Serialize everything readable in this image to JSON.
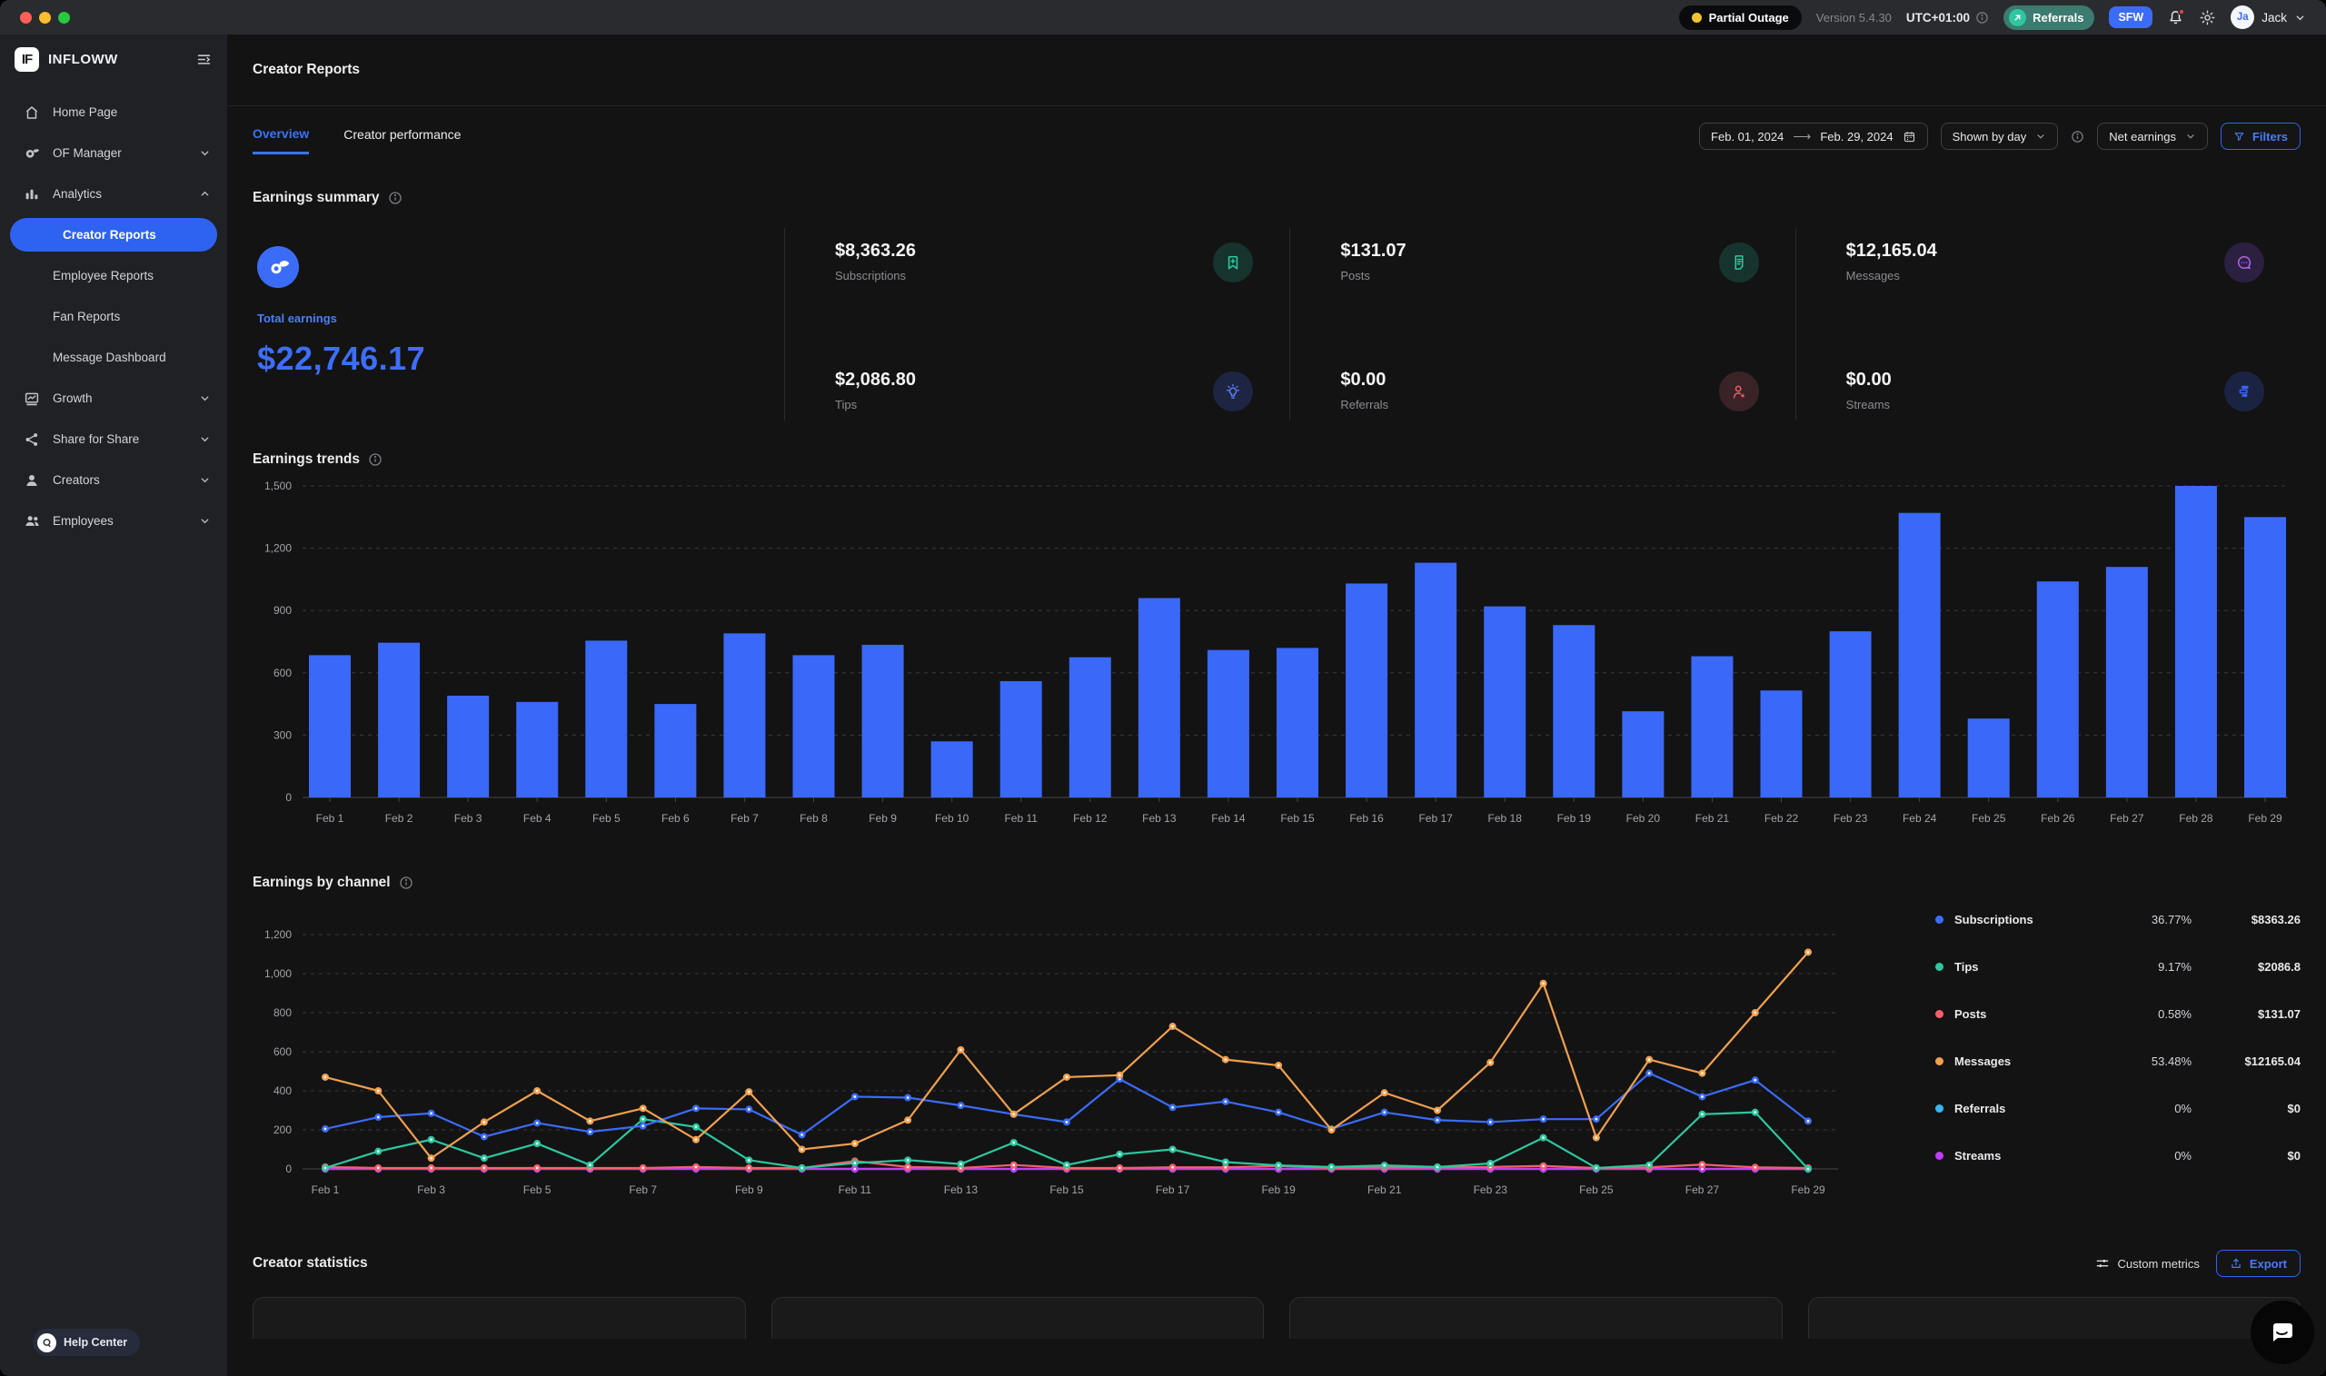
{
  "topbar": {
    "status_badge": "Partial Outage",
    "version": "Version 5.4.30",
    "timezone": "UTC+01:00",
    "referrals_label": "Referrals",
    "sfw_label": "SFW",
    "user": {
      "initials": "Ja",
      "name": "Jack"
    }
  },
  "sidebar": {
    "brand": "INFLOWW",
    "brand_monogram": "IF",
    "items": [
      {
        "label": "Home Page"
      },
      {
        "label": "OF Manager"
      },
      {
        "label": "Analytics"
      },
      {
        "label": "Growth"
      },
      {
        "label": "Share for Share"
      },
      {
        "label": "Creators"
      },
      {
        "label": "Employees"
      }
    ],
    "analytics_children": [
      {
        "label": "Creator Reports",
        "active": true
      },
      {
        "label": "Employee Reports",
        "active": false
      },
      {
        "label": "Fan Reports",
        "active": false
      },
      {
        "label": "Message Dashboard",
        "active": false
      }
    ],
    "help_center": "Help Center"
  },
  "header": {
    "title": "Creator Reports"
  },
  "tabs": [
    {
      "label": "Overview",
      "active": true
    },
    {
      "label": "Creator performance",
      "active": false
    }
  ],
  "controls": {
    "date_from": "Feb. 01, 2024",
    "date_to": "Feb. 29, 2024",
    "group_by": "Shown by day",
    "metric": "Net earnings",
    "filters_label": "Filters"
  },
  "earnings_summary": {
    "title": "Earnings summary",
    "total": {
      "label": "Total earnings",
      "value": "$22,746.17"
    },
    "stats": [
      {
        "value": "$8,363.26",
        "label": "Subscriptions",
        "icon": "bookmark-plus-icon",
        "color": "#2ec79f",
        "bg": "#16342d"
      },
      {
        "value": "$2,086.80",
        "label": "Tips",
        "icon": "lightbulb-icon",
        "color": "#5a7df2",
        "bg": "#1e2542"
      },
      {
        "value": "$131.07",
        "label": "Posts",
        "icon": "document-icon",
        "color": "#2ec79f",
        "bg": "#16342d"
      },
      {
        "value": "$0.00",
        "label": "Referrals",
        "icon": "person-star-icon",
        "color": "#ef5d68",
        "bg": "#3a2327"
      },
      {
        "value": "$12,165.04",
        "label": "Messages",
        "icon": "chat-dots-icon",
        "color": "#b364f0",
        "bg": "#2c2040"
      },
      {
        "value": "$0.00",
        "label": "Streams",
        "icon": "streams-icon",
        "color": "#3b63f2",
        "bg": "#1b2342"
      }
    ]
  },
  "chart_data": [
    {
      "type": "bar",
      "title": "Earnings trends",
      "categories": [
        "Feb 1",
        "Feb 2",
        "Feb 3",
        "Feb 4",
        "Feb 5",
        "Feb 6",
        "Feb 7",
        "Feb 8",
        "Feb 9",
        "Feb 10",
        "Feb 11",
        "Feb 12",
        "Feb 13",
        "Feb 14",
        "Feb 15",
        "Feb 16",
        "Feb 17",
        "Feb 18",
        "Feb 19",
        "Feb 20",
        "Feb 21",
        "Feb 22",
        "Feb 23",
        "Feb 24",
        "Feb 25",
        "Feb 26",
        "Feb 27",
        "Feb 28",
        "Feb 29"
      ],
      "values": [
        685,
        745,
        490,
        460,
        755,
        450,
        790,
        685,
        735,
        270,
        560,
        675,
        960,
        710,
        720,
        1030,
        1130,
        920,
        830,
        415,
        680,
        515,
        800,
        1370,
        380,
        1040,
        1110,
        1500,
        1350
      ],
      "ylim": [
        0,
        1500
      ],
      "yticks": [
        0,
        300,
        600,
        900,
        1200,
        1500
      ],
      "ytick_labels": [
        "0",
        "300",
        "600",
        "900",
        "1,200",
        "1,500"
      ],
      "bar_color": "#3a68f8",
      "grid": "dashed-horizontal"
    },
    {
      "type": "line",
      "title": "Earnings by channel",
      "x": [
        "Feb 1",
        "Feb 2",
        "Feb 3",
        "Feb 4",
        "Feb 5",
        "Feb 6",
        "Feb 7",
        "Feb 8",
        "Feb 9",
        "Feb 10",
        "Feb 11",
        "Feb 12",
        "Feb 13",
        "Feb 14",
        "Feb 15",
        "Feb 16",
        "Feb 17",
        "Feb 18",
        "Feb 19",
        "Feb 20",
        "Feb 21",
        "Feb 22",
        "Feb 23",
        "Feb 24",
        "Feb 25",
        "Feb 26",
        "Feb 27",
        "Feb 28",
        "Feb 29"
      ],
      "x_label_step": 2,
      "ylim": [
        0,
        1200
      ],
      "yticks": [
        0,
        200,
        400,
        600,
        800,
        1000,
        1200
      ],
      "ytick_labels": [
        "0",
        "200",
        "400",
        "600",
        "800",
        "1,000",
        "1,200"
      ],
      "grid": "dashed-horizontal",
      "legend_position": "right",
      "series": [
        {
          "name": "Referrals",
          "color": "#38b6f1",
          "values": [
            0,
            0,
            0,
            0,
            0,
            0,
            0,
            0,
            0,
            0,
            0,
            0,
            0,
            0,
            0,
            0,
            0,
            0,
            0,
            0,
            0,
            0,
            0,
            0,
            0,
            0,
            0,
            0,
            0
          ]
        },
        {
          "name": "Streams",
          "color": "#bf3df2",
          "values": [
            0,
            0,
            0,
            0,
            0,
            0,
            0,
            0,
            0,
            0,
            0,
            0,
            0,
            0,
            0,
            0,
            0,
            0,
            0,
            0,
            0,
            0,
            0,
            0,
            0,
            0,
            0,
            0,
            0
          ]
        },
        {
          "name": "Posts",
          "color": "#f2616b",
          "values": [
            10,
            5,
            5,
            5,
            5,
            5,
            5,
            10,
            5,
            5,
            40,
            10,
            5,
            20,
            5,
            5,
            8,
            8,
            15,
            5,
            8,
            8,
            10,
            15,
            5,
            8,
            22,
            8,
            5
          ]
        },
        {
          "name": "Tips",
          "color": "#2ec79f",
          "values": [
            5,
            90,
            150,
            55,
            130,
            20,
            255,
            215,
            45,
            5,
            30,
            45,
            25,
            135,
            20,
            75,
            100,
            35,
            18,
            10,
            18,
            10,
            28,
            160,
            5,
            20,
            280,
            290,
            0
          ]
        },
        {
          "name": "Subscriptions",
          "color": "#3b6cf7",
          "values": [
            205,
            265,
            285,
            165,
            235,
            190,
            220,
            310,
            305,
            175,
            370,
            365,
            325,
            280,
            240,
            460,
            315,
            345,
            290,
            205,
            290,
            250,
            240,
            255,
            255,
            490,
            370,
            455,
            245
          ]
        },
        {
          "name": "Messages",
          "color": "#f0a04e",
          "values": [
            470,
            400,
            55,
            240,
            400,
            245,
            310,
            150,
            395,
            100,
            130,
            250,
            610,
            280,
            470,
            480,
            730,
            560,
            530,
            200,
            390,
            300,
            545,
            950,
            160,
            560,
            490,
            800,
            1110
          ]
        }
      ],
      "legend": [
        {
          "name": "Subscriptions",
          "color": "#3b6cf7",
          "percent": "36.77%",
          "amount": "$8363.26"
        },
        {
          "name": "Tips",
          "color": "#2ec79f",
          "percent": "9.17%",
          "amount": "$2086.8"
        },
        {
          "name": "Posts",
          "color": "#f2616b",
          "percent": "0.58%",
          "amount": "$131.07"
        },
        {
          "name": "Messages",
          "color": "#f0a04e",
          "percent": "53.48%",
          "amount": "$12165.04"
        },
        {
          "name": "Referrals",
          "color": "#38b6f1",
          "percent": "0%",
          "amount": "$0"
        },
        {
          "name": "Streams",
          "color": "#bf3df2",
          "percent": "0%",
          "amount": "$0"
        }
      ]
    }
  ],
  "creator_statistics": {
    "title": "Creator statistics",
    "custom_metrics_label": "Custom metrics",
    "export_label": "Export"
  }
}
